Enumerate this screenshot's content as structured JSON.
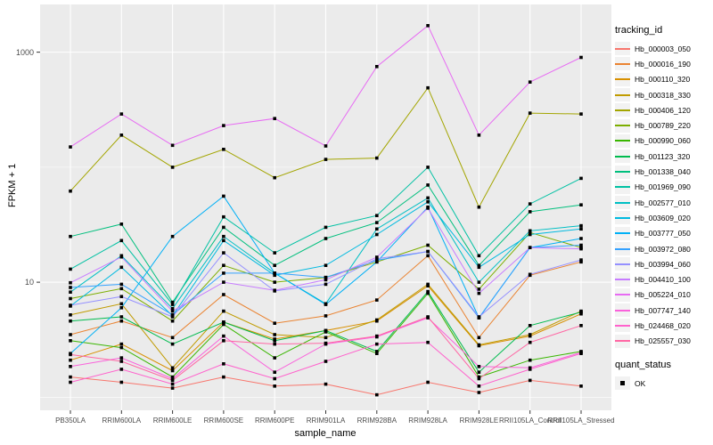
{
  "chart_data": {
    "type": "line",
    "title": "",
    "xlabel": "sample_name",
    "ylabel": "FPKM + 1",
    "y_scale": "log10",
    "ylim": [
      0.77,
      2600
    ],
    "y_major_breaks": [
      10,
      1000
    ],
    "y_minor_breaks": [
      1,
      100
    ],
    "y_tick_labels": [
      "10",
      "1000"
    ],
    "grid": true,
    "legend_position": "right",
    "point_shape": "filled-black-square",
    "categories": [
      "PB350LA",
      "RRIM600LA",
      "RRIM600LE",
      "RRIM600SE",
      "RRIM600PE",
      "RRIM901LA",
      "RRIM928BA",
      "RRIM928LA",
      "RRIM928LE",
      "RRII105LA_Control",
      "RRII105LA_Stressed"
    ],
    "series": [
      {
        "name": "Hb_000003_050",
        "color": "#F8766D",
        "values": [
          1.5,
          1.35,
          1.2,
          1.5,
          1.25,
          1.3,
          1.05,
          1.35,
          1.1,
          1.4,
          1.25
        ]
      },
      {
        "name": "Hb_000016_190",
        "color": "#EA8331",
        "values": [
          3.5,
          4.6,
          3.3,
          7.8,
          4.4,
          5.1,
          7.0,
          17,
          3.3,
          11.5,
          15
        ]
      },
      {
        "name": "Hb_000110_320",
        "color": "#D89000",
        "values": [
          2.1,
          2.9,
          1.7,
          4.5,
          3.2,
          3.8,
          4.6,
          9.3,
          2.8,
          3.4,
          5.3
        ]
      },
      {
        "name": "Hb_000318_330",
        "color": "#C09B00",
        "values": [
          5.2,
          6.5,
          1.8,
          5.6,
          3.5,
          3.3,
          4.7,
          9.6,
          2.85,
          3.5,
          5.6
        ]
      },
      {
        "name": "Hb_000406_120",
        "color": "#A3A500",
        "values": [
          62,
          190,
          100,
          143,
          81,
          117,
          120,
          490,
          45,
          295,
          290
        ]
      },
      {
        "name": "Hb_000789_220",
        "color": "#7CAE00",
        "values": [
          7.2,
          8.8,
          4.6,
          14,
          10,
          11,
          15,
          21,
          8.7,
          27,
          20
        ]
      },
      {
        "name": "Hb_000990_060",
        "color": "#39B600",
        "values": [
          3.1,
          2.7,
          1.5,
          4.3,
          2.2,
          3.7,
          2.4,
          8.0,
          1.5,
          2.1,
          2.5
        ]
      },
      {
        "name": "Hb_001123_320",
        "color": "#00BB4E",
        "values": [
          4.6,
          5.0,
          2.9,
          4.5,
          3.1,
          3.8,
          2.5,
          8.3,
          1.65,
          4.2,
          5.5
        ]
      },
      {
        "name": "Hb_001338_040",
        "color": "#00BF7D",
        "values": [
          25,
          32,
          6.7,
          30,
          14,
          24,
          33,
          70,
          14,
          41,
          47
        ]
      },
      {
        "name": "Hb_001969_090",
        "color": "#00C1A3",
        "values": [
          13,
          23,
          6.4,
          37,
          18,
          30,
          38,
          100,
          17,
          48,
          80
        ]
      },
      {
        "name": "Hb_002577_010",
        "color": "#00BFC4",
        "values": [
          8.2,
          17,
          5.9,
          25,
          12,
          6.5,
          29,
          54,
          10,
          28,
          31
        ]
      },
      {
        "name": "Hb_003609_020",
        "color": "#00BAE0",
        "values": [
          6.2,
          13.5,
          5.1,
          23,
          11.5,
          14,
          26,
          50,
          13.5,
          26,
          29
        ]
      },
      {
        "name": "Hb_003777_050",
        "color": "#00B0F6",
        "values": [
          2.4,
          6.0,
          25,
          56,
          12,
          6.4,
          15,
          45,
          4.9,
          20,
          24
        ]
      },
      {
        "name": "Hb_003972_080",
        "color": "#35A2FF",
        "values": [
          9.0,
          9.6,
          5.2,
          12,
          12,
          11,
          15.5,
          18.5,
          4.9,
          20,
          21
        ]
      },
      {
        "name": "Hb_003994_060",
        "color": "#9590FF",
        "values": [
          6.3,
          7.5,
          5.0,
          18,
          8.4,
          9.6,
          16,
          18.5,
          5.0,
          11.7,
          15.6
        ]
      },
      {
        "name": "Hb_004410_100",
        "color": "#C77CFF",
        "values": [
          9.9,
          16.6,
          5.6,
          10,
          8.5,
          10.5,
          16.5,
          44,
          8.0,
          20,
          19.5
        ]
      },
      {
        "name": "Hb_005224_010",
        "color": "#E76BF3",
        "values": [
          150,
          290,
          155,
          230,
          265,
          153,
          750,
          1700,
          190,
          550,
          900
        ]
      },
      {
        "name": "Hb_007747_140",
        "color": "#FA62DB",
        "values": [
          1.85,
          2.2,
          1.45,
          3.4,
          1.65,
          2.9,
          3.35,
          4.9,
          1.85,
          1.8,
          2.45
        ]
      },
      {
        "name": "Hb_024468_020",
        "color": "#FF61CC",
        "values": [
          1.35,
          1.75,
          1.3,
          1.95,
          1.45,
          2.05,
          2.9,
          3.0,
          1.25,
          1.75,
          2.4
        ]
      },
      {
        "name": "Hb_025557_030",
        "color": "#FF67A4",
        "values": [
          2.35,
          2.05,
          1.4,
          3.1,
          2.9,
          2.95,
          3.4,
          5.0,
          1.45,
          3.0,
          4.2
        ]
      }
    ],
    "legend": {
      "color_title": "tracking_id",
      "shape_title": "quant_status",
      "shape_label": "OK"
    }
  },
  "style": {
    "panel_bg": "#EBEBEB",
    "grid_color": "#FFFFFF",
    "tick_text_color": "#4D4D4D",
    "tick_mark_color": "#333333",
    "point_color": "#000000",
    "legend_key_bg": "#F2F2F2"
  }
}
